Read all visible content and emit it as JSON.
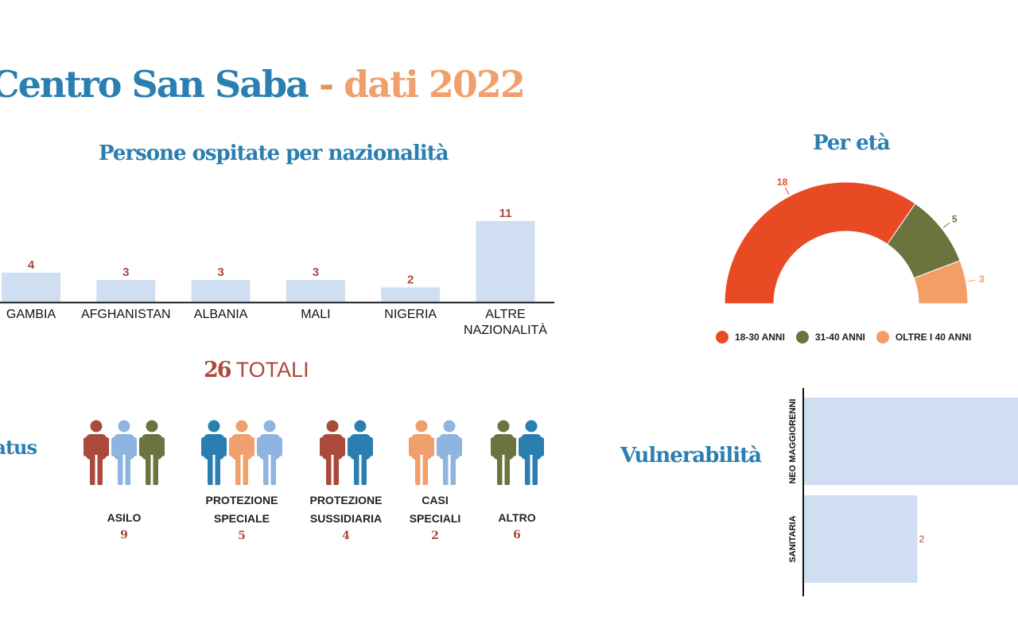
{
  "header": {
    "title_main": "Centro San Saba",
    "title_sep": " - ",
    "title_year": "dati 2022"
  },
  "nationality": {
    "title": "Persone ospitate per nazionalità"
  },
  "age": {
    "title": "Per età"
  },
  "status": {
    "title": "Status",
    "totals_number": "26",
    "totals_label": "TOTALI",
    "groups": [
      {
        "label": "ASILO",
        "count": "9",
        "figure_colors": [
          "#a94a3b",
          "#8fb4e0",
          "#6b743f"
        ]
      },
      {
        "label": "PROTEZIONE SPECIALE",
        "count": "5",
        "figure_colors": [
          "#2a7fb0",
          "#f0a06c",
          "#8fb4e0"
        ]
      },
      {
        "label": "PROTEZIONE SUSSIDIARIA",
        "count": "4",
        "figure_colors": [
          "#a94a3b",
          "#2a7fb0"
        ]
      },
      {
        "label": "CASI SPECIALI",
        "count": "2",
        "figure_colors": [
          "#f0a06c",
          "#8fb4e0"
        ]
      },
      {
        "label": "ALTRO",
        "count": "6",
        "figure_colors": [
          "#6b743f",
          "#2a7fb0"
        ]
      }
    ]
  },
  "vulnerability": {
    "title": "Vulnerabilità"
  },
  "colors": {
    "blue": "#2a7fb0",
    "orange": "#f0a06c",
    "red_brown": "#a94a3b",
    "bar_fill": "#cfdff1"
  },
  "chart_data": [
    {
      "type": "bar",
      "title": "Persone ospitate per nazionalità",
      "categories": [
        "GAMBIA",
        "AFGHANISTAN",
        "ALBANIA",
        "MALI",
        "NIGERIA",
        "ALTRE NAZIONALITÀ"
      ],
      "values": [
        4,
        3,
        3,
        3,
        2,
        11
      ],
      "ylim": [
        0,
        11
      ],
      "grid": false,
      "color": "#cfdff1",
      "label_color": "#a94a3b"
    },
    {
      "type": "pie",
      "subtype": "semi-donut",
      "title": "Per età",
      "labels": [
        "18-30 ANNI",
        "31-40 ANNI",
        "OLTRE I 40 ANNI"
      ],
      "values": [
        18,
        5,
        3
      ],
      "colors": [
        "#e84a24",
        "#6b743f",
        "#f49d67"
      ],
      "legend": "bottom"
    },
    {
      "type": "bar",
      "orientation": "horizontal",
      "title": "Vulnerabilità",
      "categories": [
        "NEO MAGGIORENNI",
        "SANITARIA"
      ],
      "values": [
        4,
        2
      ],
      "value_labels": [
        "",
        "2"
      ],
      "color": "#cfdff1"
    }
  ]
}
